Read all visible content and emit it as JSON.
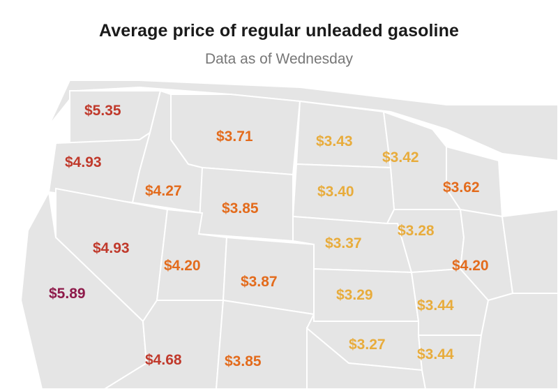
{
  "title": "Average price of regular unleaded gasoline",
  "subtitle": "Data as of Wednesday",
  "colors": {
    "highest": "#8e1a4a",
    "high": "#c0392b",
    "mid": "#e36b1c",
    "low": "#e8ac3c",
    "land": "#e5e5e5"
  },
  "prices": [
    {
      "id": "price-washington",
      "value": "$5.35",
      "tier": "high"
    },
    {
      "id": "price-montana",
      "value": "$3.71",
      "tier": "mid"
    },
    {
      "id": "price-north-dakota",
      "value": "$3.43",
      "tier": "low"
    },
    {
      "id": "price-oregon",
      "value": "$4.93",
      "tier": "high"
    },
    {
      "id": "price-minnesota",
      "value": "$3.42",
      "tier": "low"
    },
    {
      "id": "price-idaho",
      "value": "$4.27",
      "tier": "mid"
    },
    {
      "id": "price-south-dakota",
      "value": "$3.40",
      "tier": "low"
    },
    {
      "id": "price-wisconsin",
      "value": "$3.62",
      "tier": "mid"
    },
    {
      "id": "price-wyoming",
      "value": "$3.85",
      "tier": "mid"
    },
    {
      "id": "price-iowa",
      "value": "$3.28",
      "tier": "low"
    },
    {
      "id": "price-nevada",
      "value": "$4.93",
      "tier": "high"
    },
    {
      "id": "price-nebraska",
      "value": "$3.37",
      "tier": "low"
    },
    {
      "id": "price-utah",
      "value": "$4.20",
      "tier": "mid"
    },
    {
      "id": "price-illinois",
      "value": "$4.20",
      "tier": "mid"
    },
    {
      "id": "price-colorado",
      "value": "$3.87",
      "tier": "mid"
    },
    {
      "id": "price-california",
      "value": "$5.89",
      "tier": "highest"
    },
    {
      "id": "price-kansas",
      "value": "$3.29",
      "tier": "low"
    },
    {
      "id": "price-missouri",
      "value": "$3.44",
      "tier": "low"
    },
    {
      "id": "price-oklahoma",
      "value": "$3.27",
      "tier": "low"
    },
    {
      "id": "price-arizona",
      "value": "$4.68",
      "tier": "high"
    },
    {
      "id": "price-new-mexico",
      "value": "$3.85",
      "tier": "mid"
    },
    {
      "id": "price-arkansas",
      "value": "$3.44",
      "tier": "low"
    }
  ]
}
